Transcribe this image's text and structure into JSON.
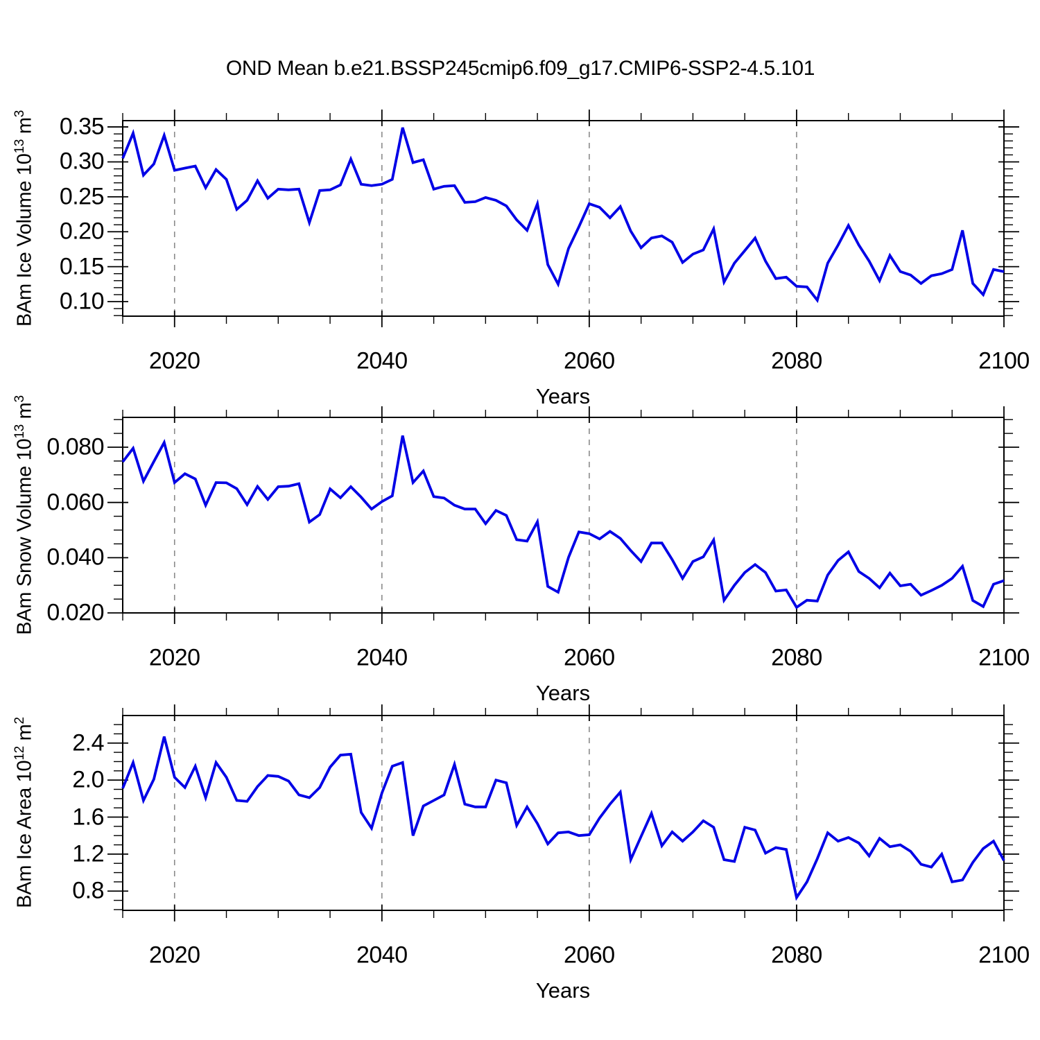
{
  "title": "OND Mean b.e21.BSSP245cmip6.f09_g17.CMIP6-SSP2-4.5.101",
  "chart_data": {
    "type": "line",
    "subplot_count": 3,
    "xlabel": "Years",
    "x_range": [
      2015,
      2100
    ],
    "x_ticks_major": [
      2020,
      2040,
      2060,
      2080,
      2100
    ],
    "x_tick_labels": [
      "2020",
      "2040",
      "2060",
      "2080",
      "2100"
    ],
    "x_ticks_minor_step": 5,
    "grid_years": [
      2020,
      2040,
      2060,
      2080
    ],
    "grid_style": "vertical dashed gray",
    "line_color": "#0000E6",
    "x_years": [
      2015,
      2016,
      2017,
      2018,
      2019,
      2020,
      2021,
      2022,
      2023,
      2024,
      2025,
      2026,
      2027,
      2028,
      2029,
      2030,
      2031,
      2032,
      2033,
      2034,
      2035,
      2036,
      2037,
      2038,
      2039,
      2040,
      2041,
      2042,
      2043,
      2044,
      2045,
      2046,
      2047,
      2048,
      2049,
      2050,
      2051,
      2052,
      2053,
      2054,
      2055,
      2056,
      2057,
      2058,
      2059,
      2060,
      2061,
      2062,
      2063,
      2064,
      2065,
      2066,
      2067,
      2068,
      2069,
      2070,
      2071,
      2072,
      2073,
      2074,
      2075,
      2076,
      2077,
      2078,
      2079,
      2080,
      2081,
      2082,
      2083,
      2084,
      2085,
      2086,
      2087,
      2088,
      2089,
      2090,
      2091,
      2092,
      2093,
      2094,
      2095,
      2096,
      2097,
      2098,
      2099,
      2100
    ],
    "panels": [
      {
        "name": "ice-volume",
        "ylabel_base": "BAm Ice Volume 10",
        "ylabel_sup": "13",
        "ylabel_mid": " m",
        "ylabel_sup2": "3",
        "ylim": [
          0.0792,
          0.359
        ],
        "ytick_values": [
          0.1,
          0.15,
          0.2,
          0.25,
          0.3,
          0.35
        ],
        "ytick_labels": [
          "0.10",
          "0.15",
          "0.20",
          "0.25",
          "0.30",
          "0.35"
        ],
        "ytick_minor_step": 0.01,
        "values": [
          0.305,
          0.341,
          0.281,
          0.297,
          0.338,
          0.288,
          0.291,
          0.294,
          0.263,
          0.289,
          0.275,
          0.232,
          0.245,
          0.273,
          0.248,
          0.261,
          0.26,
          0.261,
          0.213,
          0.259,
          0.26,
          0.267,
          0.304,
          0.268,
          0.266,
          0.268,
          0.275,
          0.349,
          0.299,
          0.303,
          0.261,
          0.265,
          0.266,
          0.242,
          0.243,
          0.249,
          0.245,
          0.237,
          0.217,
          0.202,
          0.24,
          0.153,
          0.125,
          0.176,
          0.207,
          0.24,
          0.235,
          0.22,
          0.236,
          0.201,
          0.177,
          0.191,
          0.194,
          0.185,
          0.156,
          0.168,
          0.174,
          0.204,
          0.128,
          0.155,
          0.173,
          0.191,
          0.158,
          0.133,
          0.135,
          0.122,
          0.121,
          0.102,
          0.155,
          0.181,
          0.209,
          0.181,
          0.158,
          0.13,
          0.166,
          0.143,
          0.138,
          0.126,
          0.137,
          0.14,
          0.146,
          0.202,
          0.126,
          0.11,
          0.146,
          0.143
        ]
      },
      {
        "name": "snow-volume",
        "ylabel_base": "BAm Snow Volume 10",
        "ylabel_sup": "13",
        "ylabel_mid": " m",
        "ylabel_sup2": "3",
        "ylim": [
          0.02,
          0.0908
        ],
        "ytick_values": [
          0.02,
          0.04,
          0.06,
          0.08
        ],
        "ytick_labels": [
          "0.020",
          "0.040",
          "0.060",
          "0.080"
        ],
        "ytick_minor_step": 0.005,
        "values": [
          0.0747,
          0.0796,
          0.0677,
          0.0748,
          0.0817,
          0.0672,
          0.0704,
          0.0685,
          0.059,
          0.0672,
          0.0671,
          0.065,
          0.0592,
          0.0658,
          0.0611,
          0.0657,
          0.0659,
          0.0668,
          0.0529,
          0.0556,
          0.0649,
          0.0617,
          0.0657,
          0.0619,
          0.0576,
          0.0603,
          0.0624,
          0.0842,
          0.0672,
          0.0714,
          0.0621,
          0.0616,
          0.059,
          0.0576,
          0.0576,
          0.0523,
          0.0571,
          0.0553,
          0.0465,
          0.046,
          0.053,
          0.0296,
          0.0275,
          0.0401,
          0.0493,
          0.0487,
          0.0468,
          0.0495,
          0.047,
          0.0426,
          0.0386,
          0.0453,
          0.0453,
          0.0393,
          0.0325,
          0.0386,
          0.0403,
          0.0464,
          0.0246,
          0.03,
          0.0346,
          0.0375,
          0.0346,
          0.0279,
          0.0283,
          0.022,
          0.0246,
          0.0243,
          0.0337,
          0.039,
          0.0421,
          0.035,
          0.0325,
          0.0291,
          0.0344,
          0.0298,
          0.0304,
          0.0264,
          0.0281,
          0.03,
          0.0325,
          0.0369,
          0.0245,
          0.0223,
          0.0304,
          0.0317
        ]
      },
      {
        "name": "ice-area",
        "ylabel_base": "BAm Ice Area 10",
        "ylabel_sup": "12",
        "ylabel_mid": " m",
        "ylabel_sup2": "2",
        "ylim": [
          0.592,
          2.698
        ],
        "ytick_values": [
          0.8,
          1.2,
          1.6,
          2.0,
          2.4
        ],
        "ytick_labels": [
          "0.8",
          "1.2",
          "1.6",
          "2.0",
          "2.4"
        ],
        "ytick_minor_step": 0.1,
        "values": [
          1.91,
          2.19,
          1.78,
          2.01,
          2.47,
          2.03,
          1.92,
          2.15,
          1.81,
          2.19,
          2.03,
          1.78,
          1.77,
          1.93,
          2.05,
          2.04,
          1.99,
          1.84,
          1.81,
          1.92,
          2.14,
          2.27,
          2.28,
          1.65,
          1.48,
          1.86,
          2.15,
          2.19,
          1.4,
          1.72,
          1.78,
          1.84,
          2.17,
          1.74,
          1.71,
          1.71,
          2.0,
          1.97,
          1.51,
          1.71,
          1.53,
          1.31,
          1.43,
          1.44,
          1.4,
          1.41,
          1.59,
          1.74,
          1.87,
          1.14,
          1.39,
          1.64,
          1.29,
          1.44,
          1.34,
          1.44,
          1.56,
          1.49,
          1.14,
          1.12,
          1.49,
          1.46,
          1.21,
          1.27,
          1.25,
          0.73,
          0.9,
          1.15,
          1.43,
          1.34,
          1.38,
          1.32,
          1.18,
          1.37,
          1.28,
          1.3,
          1.23,
          1.09,
          1.06,
          1.2,
          0.9,
          0.92,
          1.11,
          1.26,
          1.34,
          1.13
        ]
      }
    ]
  }
}
